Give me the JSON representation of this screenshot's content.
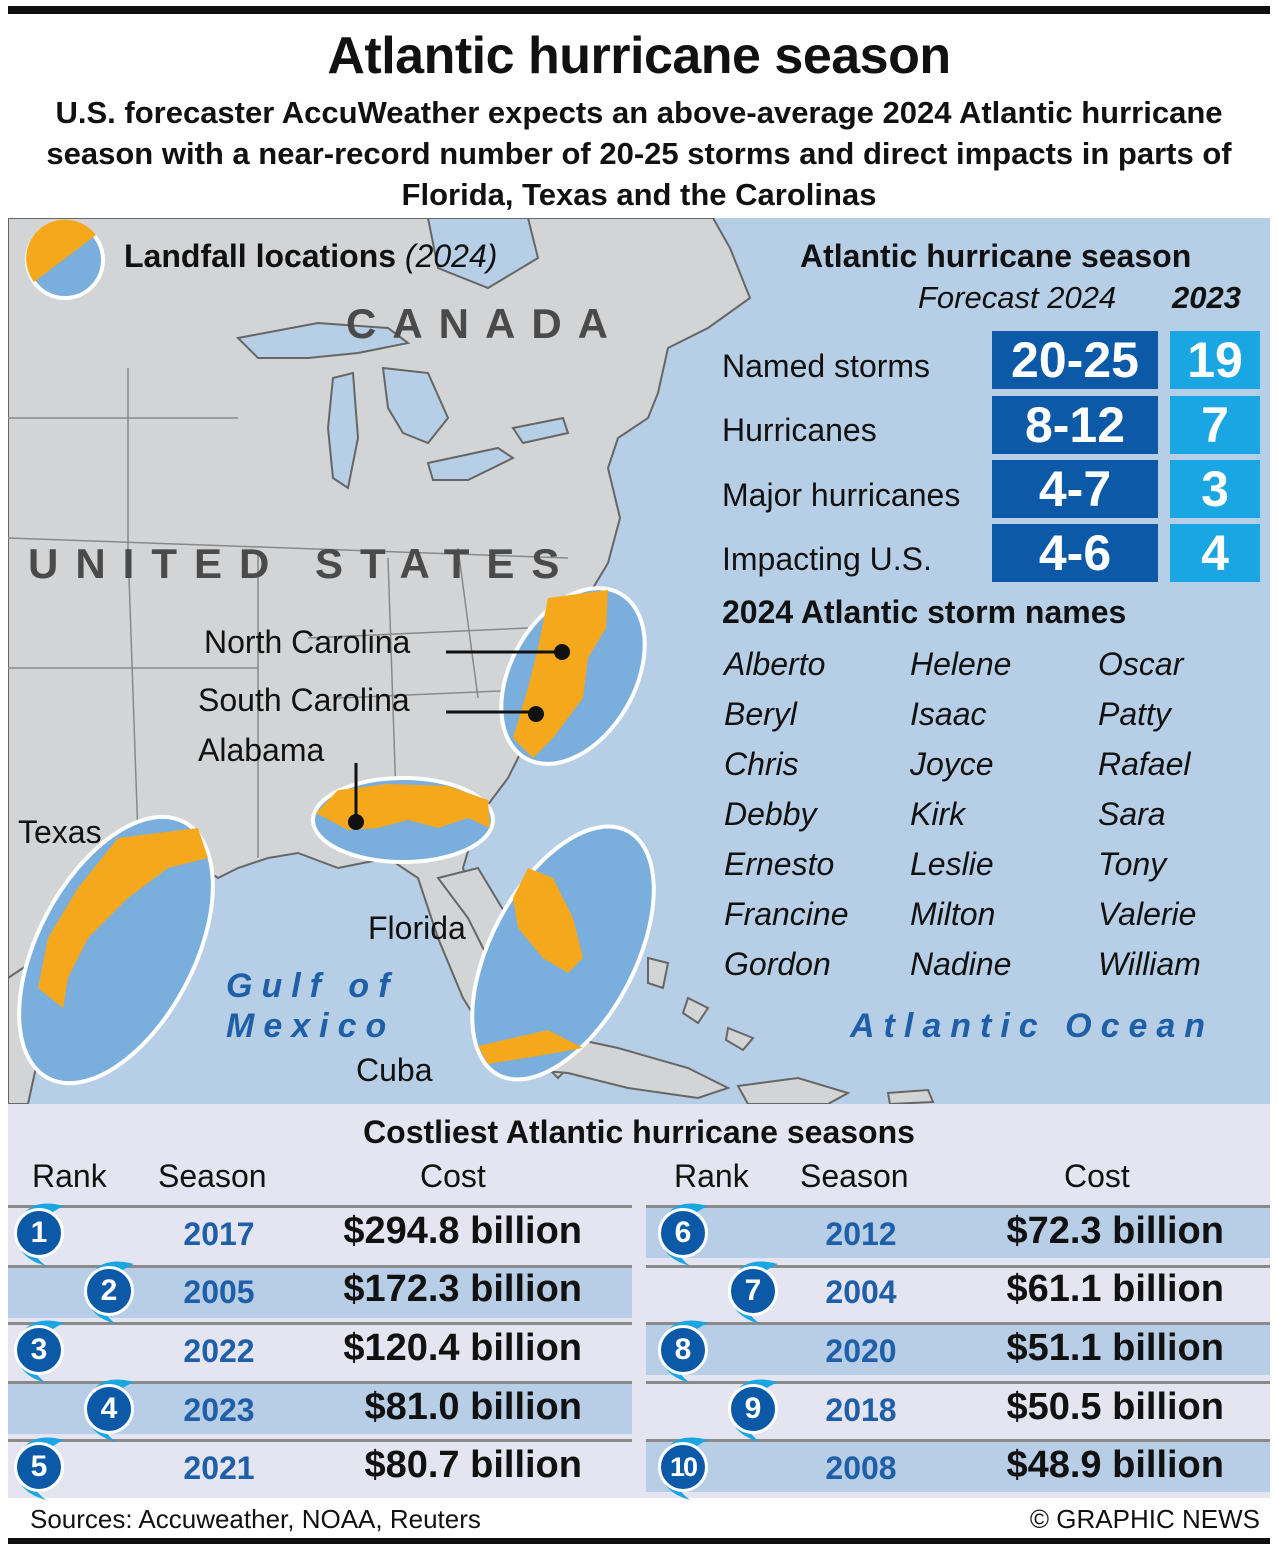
{
  "title": "Atlantic hurricane season",
  "subtitle": "U.S. forecaster AccuWeather expects an above-average 2024 Atlantic hurricane season with a near-record number of 20-25 storms and direct impacts in parts of Florida, Texas and the Carolinas",
  "colors": {
    "orange": "#f6a81c",
    "blue": "#7aaedc",
    "land": "#d3d4d5",
    "sea": "#b7cfe6",
    "dark_blue": "#0b59a7",
    "light_blue": "#1aa6e3"
  },
  "legend": {
    "title": "Landfall locations",
    "year": "(2024)"
  },
  "map_labels": {
    "canada": "CANADA",
    "united_states": "UNITED STATES",
    "north_carolina": "North Carolina",
    "south_carolina": "South Carolina",
    "alabama": "Alabama",
    "texas": "Texas",
    "florida": "Florida",
    "cuba": "Cuba",
    "gulf_line1": "Gulf of",
    "gulf_line2": "Mexico",
    "atlantic": "Atlantic Ocean"
  },
  "forecast": {
    "heading": "Atlantic hurricane season",
    "col_2024": "Forecast 2024",
    "col_2023": "2023",
    "rows": [
      {
        "label": "Named storms",
        "v2024": "20-25",
        "v2023": "19"
      },
      {
        "label": "Hurricanes",
        "v2024": "8-12",
        "v2023": "7"
      },
      {
        "label": "Major hurricanes",
        "v2024": "4-7",
        "v2023": "3"
      },
      {
        "label": "Impacting U.S.",
        "v2024": "4-6",
        "v2023": "4"
      }
    ]
  },
  "storm_names": {
    "heading": "2024 Atlantic storm names",
    "columns": [
      [
        "Alberto",
        "Beryl",
        "Chris",
        "Debby",
        "Ernesto",
        "Francine",
        "Gordon"
      ],
      [
        "Helene",
        "Isaac",
        "Joyce",
        "Kirk",
        "Leslie",
        "Milton",
        "Nadine"
      ],
      [
        "Oscar",
        "Patty",
        "Rafael",
        "Sara",
        "Tony",
        "Valerie",
        "William"
      ]
    ]
  },
  "costliest": {
    "title": "Costliest Atlantic hurricane seasons",
    "headers": {
      "rank": "Rank",
      "season": "Season",
      "cost": "Cost"
    },
    "left": [
      {
        "rank": "1",
        "season": "2017",
        "cost": "$294.8 billion"
      },
      {
        "rank": "2",
        "season": "2005",
        "cost": "$172.3 billion"
      },
      {
        "rank": "3",
        "season": "2022",
        "cost": "$120.4 billion"
      },
      {
        "rank": "4",
        "season": "2023",
        "cost": "$81.0 billion"
      },
      {
        "rank": "5",
        "season": "2021",
        "cost": "$80.7 billion"
      }
    ],
    "right": [
      {
        "rank": "6",
        "season": "2012",
        "cost": "$72.3 billion"
      },
      {
        "rank": "7",
        "season": "2004",
        "cost": "$61.1 billion"
      },
      {
        "rank": "8",
        "season": "2020",
        "cost": "$51.1 billion"
      },
      {
        "rank": "9",
        "season": "2018",
        "cost": "$50.5 billion"
      },
      {
        "rank": "10",
        "season": "2008",
        "cost": "$48.9 billion"
      }
    ]
  },
  "footer": {
    "sources": "Sources: Accuweather, NOAA, Reuters",
    "credit": "© GRAPHIC NEWS"
  }
}
